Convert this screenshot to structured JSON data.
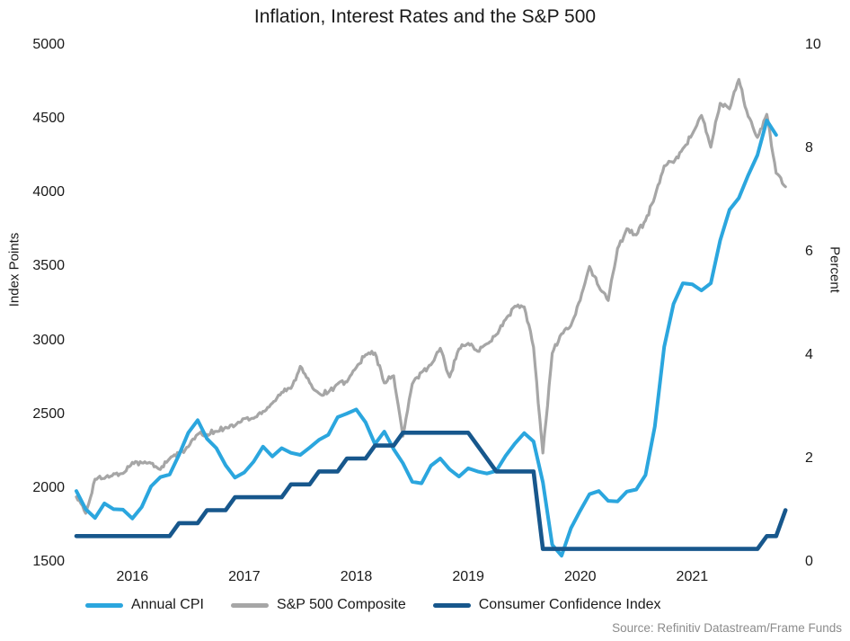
{
  "source": "Source: Refinitiv Datastream/Frame Funds",
  "chart_data": {
    "type": "line",
    "title": "Inflation, Interest Rates and the S&P 500",
    "background_color": "#FFFFFF",
    "grid": false,
    "legend_position": "bottom",
    "left_axis": {
      "label": "Index Points",
      "min": 1500,
      "max": 5000,
      "ticks": [
        5000,
        4500,
        4000,
        3500,
        3000,
        2500,
        2000,
        1500
      ]
    },
    "right_axis": {
      "label": "Percent",
      "min": 0,
      "max": 10,
      "ticks": [
        10,
        8,
        6,
        4,
        2,
        0
      ]
    },
    "x_axis": {
      "min": 2016.0,
      "max": 2022.42,
      "tick_years": [
        "2016",
        "2017",
        "2018",
        "2019",
        "2020",
        "2021"
      ]
    },
    "series": [
      {
        "name": "S&P 500 Composite",
        "axis": "left",
        "unit": "index points",
        "color": "#A6A6A6",
        "appearance": "noisy-daily",
        "first_month": "2016-01",
        "monthly_values": [
          1940,
          1829,
          2060,
          2065,
          2097,
          2099,
          2174,
          2171,
          2168,
          2126,
          2199,
          2239,
          2279,
          2364,
          2363,
          2384,
          2412,
          2423,
          2470,
          2472,
          2519,
          2575,
          2648,
          2674,
          2824,
          2714,
          2641,
          2648,
          2705,
          2718,
          2816,
          2902,
          2914,
          2712,
          2760,
          2351,
          2704,
          2784,
          2834,
          2946,
          2752,
          2942,
          2980,
          2926,
          2977,
          3038,
          3141,
          3231,
          3226,
          2954,
          2237,
          2912,
          3044,
          3100,
          3271,
          3500,
          3363,
          3270,
          3622,
          3756,
          3714,
          3811,
          3973,
          4181,
          4204,
          4298,
          4395,
          4523,
          4308,
          4605,
          4567,
          4766,
          4516,
          4374,
          4530,
          4132,
          4040
        ]
      },
      {
        "name": "Annual CPI",
        "axis": "right",
        "unit": "percent",
        "color": "#2BA6DE",
        "appearance": "smooth",
        "first_month": "2016-01",
        "monthly_values": [
          1.37,
          1.02,
          0.85,
          1.13,
          1.02,
          1.01,
          0.84,
          1.06,
          1.46,
          1.64,
          1.69,
          2.07,
          2.5,
          2.74,
          2.38,
          2.2,
          1.87,
          1.63,
          1.73,
          1.94,
          2.23,
          2.04,
          2.2,
          2.11,
          2.07,
          2.21,
          2.36,
          2.46,
          2.8,
          2.87,
          2.95,
          2.7,
          2.28,
          2.52,
          2.18,
          1.91,
          1.55,
          1.52,
          1.86,
          2.0,
          1.79,
          1.65,
          1.81,
          1.75,
          1.71,
          1.76,
          2.05,
          2.29,
          2.49,
          2.33,
          1.54,
          0.33,
          0.12,
          0.65,
          0.99,
          1.31,
          1.37,
          1.18,
          1.17,
          1.36,
          1.4,
          1.68,
          2.62,
          4.16,
          4.99,
          5.39,
          5.37,
          5.25,
          5.39,
          6.22,
          6.81,
          7.04,
          7.48,
          7.87,
          8.54,
          8.26
        ]
      },
      {
        "name": "Consumer Confidence Index",
        "axis": "right",
        "unit": "percent",
        "color": "#17578C",
        "appearance": "step",
        "first_month": "2016-01",
        "monthly_values": [
          0.5,
          0.5,
          0.5,
          0.5,
          0.5,
          0.5,
          0.5,
          0.5,
          0.5,
          0.5,
          0.5,
          0.75,
          0.75,
          0.75,
          1.0,
          1.0,
          1.0,
          1.25,
          1.25,
          1.25,
          1.25,
          1.25,
          1.25,
          1.5,
          1.5,
          1.5,
          1.75,
          1.75,
          1.75,
          2.0,
          2.0,
          2.0,
          2.25,
          2.25,
          2.25,
          2.5,
          2.5,
          2.5,
          2.5,
          2.5,
          2.5,
          2.5,
          2.5,
          2.25,
          2.0,
          1.75,
          1.75,
          1.75,
          1.75,
          1.75,
          0.25,
          0.25,
          0.25,
          0.25,
          0.25,
          0.25,
          0.25,
          0.25,
          0.25,
          0.25,
          0.25,
          0.25,
          0.25,
          0.25,
          0.25,
          0.25,
          0.25,
          0.25,
          0.25,
          0.25,
          0.25,
          0.25,
          0.25,
          0.25,
          0.5,
          0.5,
          1.0
        ]
      }
    ]
  }
}
